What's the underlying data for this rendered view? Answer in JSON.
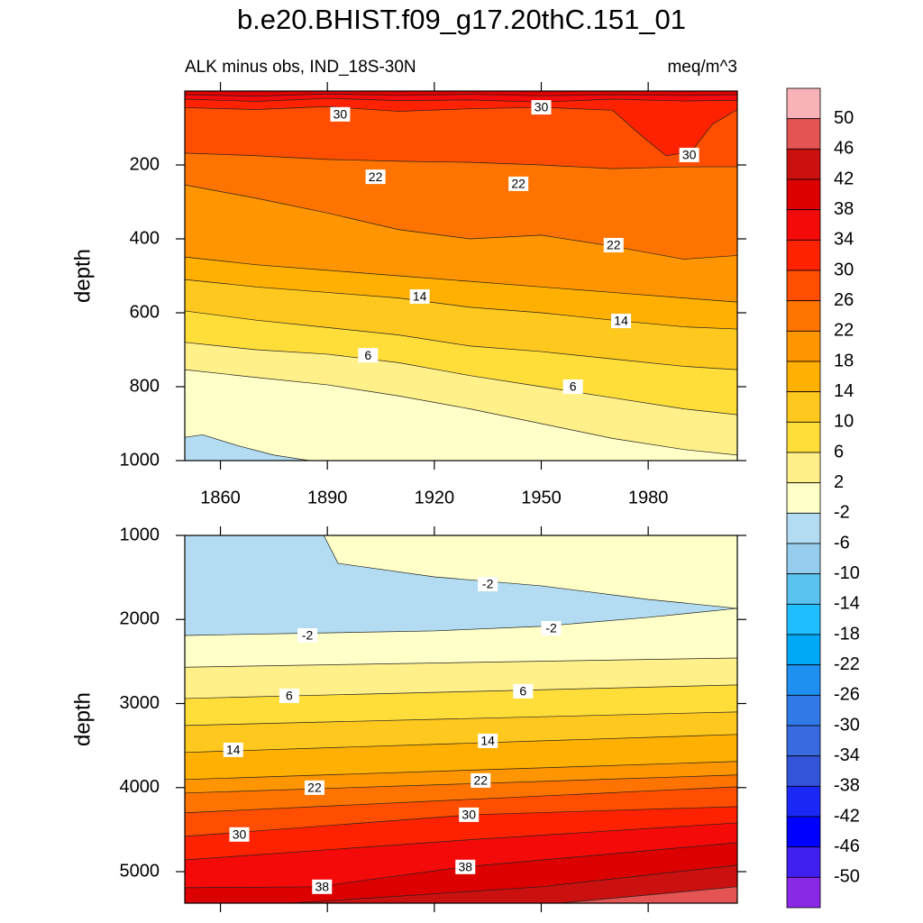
{
  "title": "b.e20.BHIST.f09_g17.20thC.151_01",
  "chart_data": [
    {
      "type": "contour",
      "subtitle_left": "ALK minus obs, IND_18S-30N",
      "subtitle_right": "meq/m^3",
      "ylabel": "depth",
      "xlim": [
        1850,
        2005
      ],
      "xticks": [
        1860,
        1890,
        1920,
        1950,
        1980
      ],
      "xtick_labels": true,
      "ylim": [
        0,
        1000
      ],
      "yticks": [
        200,
        400,
        600,
        800,
        1000
      ],
      "background_fill": "#dd0000",
      "contours": [
        {
          "level": 38,
          "fill": "#f50a0a",
          "x": [
            1850,
            1870,
            1890,
            1910,
            1930,
            1950,
            1970,
            1990,
            2005
          ],
          "depth": [
            10,
            14,
            8,
            12,
            9,
            13,
            10,
            12,
            10
          ]
        },
        {
          "level": 34,
          "fill": "#ff2200",
          "x": [
            1850,
            1870,
            1890,
            1910,
            1930,
            1950,
            1970,
            1990,
            2005
          ],
          "depth": [
            22,
            28,
            20,
            26,
            24,
            30,
            22,
            27,
            25
          ]
        },
        {
          "level": 30,
          "fill": "#ff4e00",
          "x": [
            1850,
            1870,
            1890,
            1910,
            1930,
            1950,
            1970,
            1978,
            1985,
            1992,
            1998,
            2005
          ],
          "depth": [
            45,
            50,
            42,
            55,
            48,
            44,
            52,
            120,
            175,
            165,
            90,
            50
          ]
        },
        {
          "level": 26,
          "fill": "#ff7400",
          "x": [
            1850,
            1870,
            1890,
            1910,
            1930,
            1950,
            1970,
            1990,
            2005
          ],
          "depth": [
            168,
            175,
            185,
            190,
            193,
            200,
            210,
            205,
            205
          ]
        },
        {
          "level": 22,
          "fill": "#ff9500",
          "x": [
            1850,
            1870,
            1890,
            1910,
            1930,
            1950,
            1970,
            1990,
            2005
          ],
          "depth": [
            254,
            290,
            330,
            375,
            400,
            390,
            420,
            455,
            445
          ]
        },
        {
          "level": 18,
          "fill": "#ffb000",
          "x": [
            1850,
            1870,
            1890,
            1910,
            1930,
            1950,
            1970,
            1990,
            2005
          ],
          "depth": [
            449,
            470,
            485,
            500,
            515,
            530,
            545,
            560,
            571
          ]
        },
        {
          "level": 14,
          "fill": "#ffc81e",
          "x": [
            1850,
            1870,
            1890,
            1910,
            1930,
            1950,
            1970,
            1990,
            2005
          ],
          "depth": [
            510,
            530,
            545,
            560,
            585,
            600,
            620,
            638,
            644
          ]
        },
        {
          "level": 10,
          "fill": "#ffde3a",
          "x": [
            1850,
            1870,
            1890,
            1910,
            1930,
            1950,
            1970,
            1990,
            2005
          ],
          "depth": [
            595,
            620,
            640,
            660,
            690,
            705,
            725,
            745,
            754
          ]
        },
        {
          "level": 6,
          "fill": "#fff08a",
          "x": [
            1850,
            1870,
            1890,
            1910,
            1930,
            1950,
            1970,
            1990,
            2005
          ],
          "depth": [
            680,
            700,
            712,
            735,
            770,
            800,
            830,
            860,
            876
          ]
        },
        {
          "level": 2,
          "fill": "#ffffc8",
          "x": [
            1850,
            1870,
            1890,
            1910,
            1930,
            1950,
            1970,
            1990,
            2005
          ],
          "depth": [
            754,
            775,
            795,
            825,
            860,
            900,
            940,
            970,
            985
          ]
        },
        {
          "level": -2,
          "fill": "#b3dcf2",
          "x": [
            1850,
            1855,
            1865,
            1875,
            1885
          ],
          "depth": [
            937,
            930,
            960,
            985,
            1000
          ]
        }
      ],
      "contour_labels": [
        {
          "value": 30,
          "x": 1893.6,
          "depth": 63
        },
        {
          "value": 30,
          "x": 1950,
          "depth": 44
        },
        {
          "value": 30,
          "x": 1991.5,
          "depth": 173
        },
        {
          "value": 22,
          "x": 1903.5,
          "depth": 232
        },
        {
          "value": 22,
          "x": 1943.6,
          "depth": 251
        },
        {
          "value": 22,
          "x": 1970.3,
          "depth": 417
        },
        {
          "value": 14,
          "x": 1915.9,
          "depth": 556
        },
        {
          "value": 14,
          "x": 1972.4,
          "depth": 622
        },
        {
          "value": 6,
          "x": 1901.4,
          "depth": 715
        },
        {
          "value": 6,
          "x": 1958.9,
          "depth": 800
        }
      ]
    },
    {
      "type": "contour",
      "ylabel": "depth",
      "xlim": [
        1850,
        2005
      ],
      "xticks": [
        1860,
        1890,
        1920,
        1950,
        1980
      ],
      "xtick_labels": false,
      "ylim": [
        1000,
        5375
      ],
      "yticks": [
        1000,
        2000,
        3000,
        4000,
        5000
      ],
      "background_fill": "#ffffc8",
      "contours": [
        {
          "level": -2,
          "fill": "#b3dcf2",
          "x": [
            1850,
            1889,
            1893,
            1920,
            1950,
            1980,
            2005
          ],
          "depth": [
            1000,
            1000,
            1332,
            1493,
            1600,
            1761,
            1868
          ]
        },
        {
          "level": -2,
          "fill": "#ffffc8",
          "x": [
            1850,
            1920,
            1950,
            1980,
            2005
          ],
          "depth": [
            2190,
            2136,
            2082,
            1975,
            1868
          ]
        },
        {
          "level": 2,
          "fill": "#fff08a",
          "x": [
            1850,
            2005
          ],
          "depth": [
            2568,
            2458
          ]
        },
        {
          "level": 6,
          "fill": "#ffde3a",
          "x": [
            1850,
            2005
          ],
          "depth": [
            2940,
            2779
          ]
        },
        {
          "level": 10,
          "fill": "#ffc81e",
          "x": [
            1850,
            2005
          ],
          "depth": [
            3261,
            3100
          ]
        },
        {
          "level": 14,
          "fill": "#ffb000",
          "x": [
            1850,
            2005
          ],
          "depth": [
            3582,
            3368
          ]
        },
        {
          "level": 18,
          "fill": "#ff9500",
          "x": [
            1850,
            2005
          ],
          "depth": [
            3904,
            3689
          ]
        },
        {
          "level": 22,
          "fill": "#ff7400",
          "x": [
            1850,
            2005
          ],
          "depth": [
            4065,
            3850
          ]
        },
        {
          "level": 26,
          "fill": "#ff4e00",
          "x": [
            1850,
            2005
          ],
          "depth": [
            4300,
            3990
          ]
        },
        {
          "level": 30,
          "fill": "#ff2200",
          "x": [
            1850,
            1931,
            2005
          ],
          "depth": [
            4580,
            4322,
            4226
          ]
        },
        {
          "level": 34,
          "fill": "#f50a0a",
          "x": [
            1850,
            1930,
            2005
          ],
          "depth": [
            4860,
            4620,
            4420
          ]
        },
        {
          "level": 38,
          "fill": "#dd0000",
          "x": [
            1850,
            1887,
            1928,
            2005
          ],
          "depth": [
            5191,
            5180,
            4945,
            4655
          ]
        },
        {
          "level": 42,
          "fill": "#cb1010",
          "x": [
            1880,
            1950,
            2005
          ],
          "depth": [
            5375,
            5180,
            4923
          ]
        },
        {
          "level": 46,
          "fill": "#e35452",
          "x": [
            1955,
            2005
          ],
          "depth": [
            5375,
            5180
          ]
        }
      ],
      "contour_labels": [
        {
          "value": -2,
          "x": 1935,
          "depth": 1579
        },
        {
          "value": -2,
          "x": 1884.4,
          "depth": 2190
        },
        {
          "value": -2,
          "x": 1952.8,
          "depth": 2104
        },
        {
          "value": 6,
          "x": 1879.3,
          "depth": 2908
        },
        {
          "value": 6,
          "x": 1944.9,
          "depth": 2854
        },
        {
          "value": 14,
          "x": 1863.6,
          "depth": 3551
        },
        {
          "value": 14,
          "x": 1935,
          "depth": 3444
        },
        {
          "value": 22,
          "x": 1886.4,
          "depth": 4001
        },
        {
          "value": 22,
          "x": 1933,
          "depth": 3915
        },
        {
          "value": 30,
          "x": 1865.3,
          "depth": 4558
        },
        {
          "value": 30,
          "x": 1929.7,
          "depth": 4323
        },
        {
          "value": 38,
          "x": 1888.5,
          "depth": 5180
        },
        {
          "value": 38,
          "x": 1928.7,
          "depth": 4944
        }
      ]
    }
  ],
  "colorbar": {
    "levels": [
      50,
      46,
      42,
      38,
      34,
      30,
      26,
      22,
      18,
      14,
      10,
      6,
      2,
      -2,
      -6,
      -10,
      -14,
      -18,
      -22,
      -26,
      -30,
      -34,
      -38,
      -42,
      -46,
      -50
    ],
    "colors": [
      "#f9b3b8",
      "#e35452",
      "#cb1010",
      "#dd0000",
      "#f50a0a",
      "#ff2200",
      "#ff4e00",
      "#ff7400",
      "#ff9500",
      "#ffb000",
      "#ffc81e",
      "#ffde3a",
      "#fff08a",
      "#ffffc8",
      "#b3dcf2",
      "#96cdee",
      "#5bc3f0",
      "#1ebeff",
      "#00a9f5",
      "#1e90f0",
      "#2f7ae6",
      "#3a6ae0",
      "#3254d8",
      "#1a28f5",
      "#0000ff",
      "#4020f0",
      "#8a28e8"
    ]
  }
}
